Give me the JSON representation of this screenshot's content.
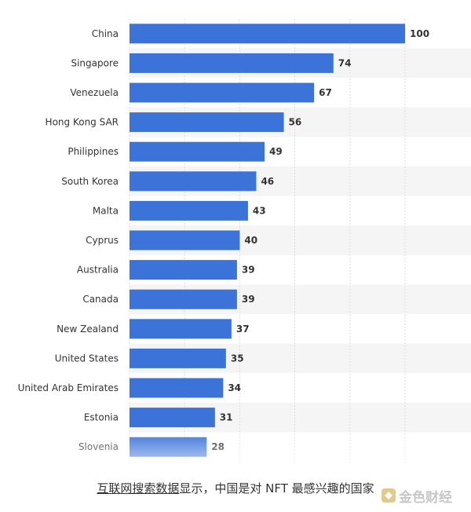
{
  "chart_data": {
    "type": "bar",
    "orientation": "horizontal",
    "categories": [
      "China",
      "Singapore",
      "Venezuela",
      "Hong Kong SAR",
      "Philippines",
      "South Korea",
      "Malta",
      "Cyprus",
      "Australia",
      "Canada",
      "New Zealand",
      "United States",
      "United Arab Emirates",
      "Estonia",
      "Slovenia"
    ],
    "values": [
      100,
      74,
      67,
      56,
      49,
      46,
      43,
      40,
      39,
      39,
      37,
      35,
      34,
      31,
      28
    ],
    "xlim": [
      0,
      100
    ],
    "grid": true,
    "bar_color": "#3b73d9"
  },
  "caption": {
    "link_text": "互联网搜索数据",
    "rest_text": "显示，中国是对 NFT 最感兴趣的国家"
  },
  "watermark": {
    "text": "金色财经"
  }
}
